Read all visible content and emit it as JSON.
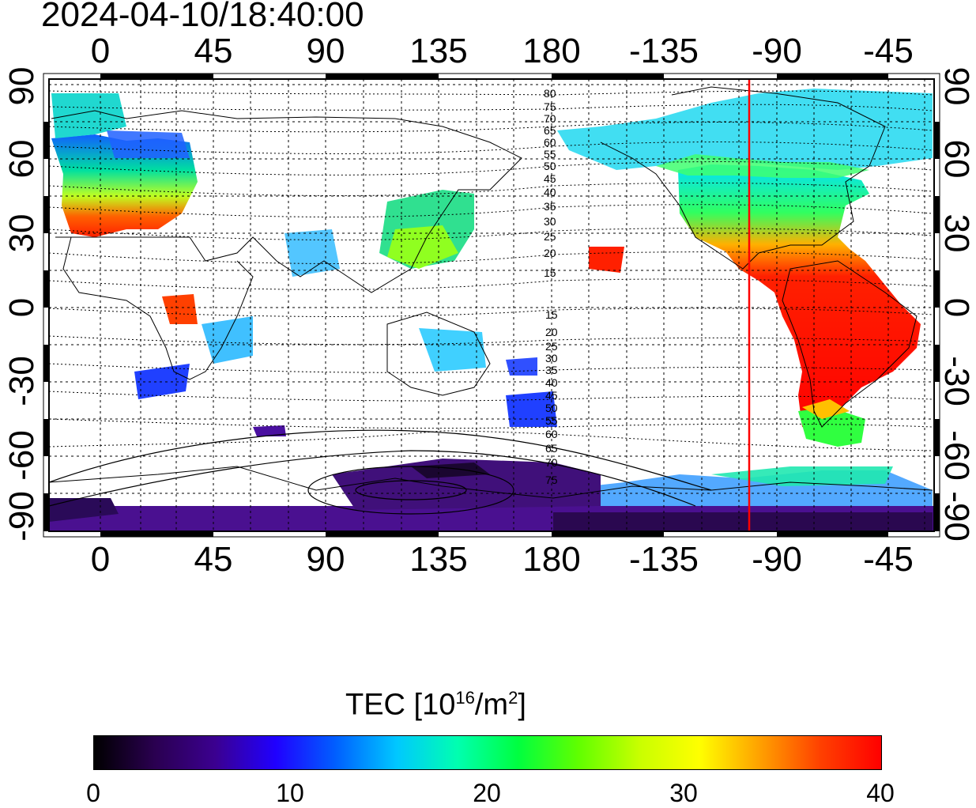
{
  "title": "2024-04-10/18:40:00",
  "map": {
    "lon_ticks": [
      "0",
      "45",
      "90",
      "135",
      "180",
      "-135",
      "-90",
      "-45"
    ],
    "lat_ticks": [
      "90",
      "60",
      "30",
      "0",
      "-30",
      "-60",
      "-90"
    ],
    "mag_lat_labels_north": [
      "80",
      "75",
      "70",
      "65",
      "60",
      "55",
      "50",
      "45",
      "40",
      "35",
      "30",
      "25",
      "20",
      "15"
    ],
    "mag_lat_labels_south": [
      "15",
      "20",
      "25",
      "30",
      "35",
      "40",
      "45",
      "50",
      "55",
      "60",
      "65",
      "70",
      "75"
    ],
    "terminator_color": "#ff0000",
    "terminator_lon": "-100"
  },
  "colorbar": {
    "title_prefix": "TEC  [10",
    "title_exp": "16",
    "title_mid": "/m",
    "title_exp2": "2",
    "title_suffix": "]",
    "ticks": [
      "0",
      "10",
      "20",
      "30",
      "40"
    ],
    "min": 0,
    "max": 40,
    "stops": [
      "#000000",
      "#2a0050",
      "#3b0090",
      "#2000ff",
      "#0060ff",
      "#00c8ff",
      "#00ffb0",
      "#00ff40",
      "#60ff00",
      "#c8ff00",
      "#ffff00",
      "#ffa000",
      "#ff4000",
      "#ff0000"
    ]
  }
}
